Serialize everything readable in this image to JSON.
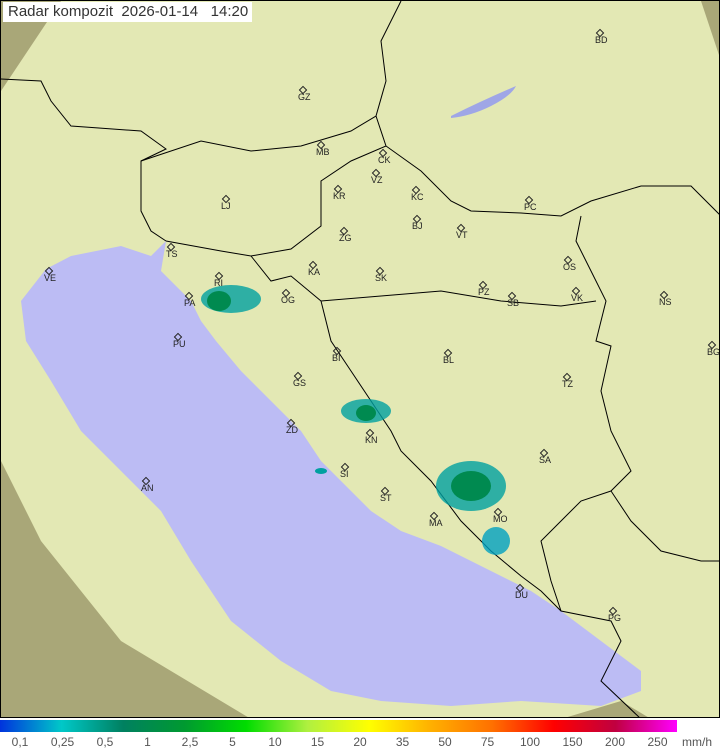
{
  "title": "Radar kompozit",
  "date": "2026-01-14",
  "time": "14:20",
  "colors": {
    "sea": "#bcbcf4",
    "land": "#e3e8b4",
    "outside_radar": "#a9a778",
    "border": "#000000"
  },
  "cities": [
    "GZ",
    "BD",
    "MB",
    "CK",
    "VZ",
    "KR",
    "KC",
    "PC",
    "LJ",
    "TS",
    "ZG",
    "BJ",
    "VT",
    "VE",
    "RI",
    "KA",
    "SK",
    "OS",
    "PA",
    "OG",
    "PZ",
    "SB",
    "VK",
    "NS",
    "PU",
    "BI",
    "BL",
    "BG",
    "GS",
    "TZ",
    "ZD",
    "KN",
    "SA",
    "AN",
    "SI",
    "ST",
    "MO",
    "MA",
    "DU",
    "PG"
  ],
  "legend": {
    "gradient": [
      "#0033dd",
      "#00c8c8",
      "#008060",
      "#009a30",
      "#00dd00",
      "#b0f040",
      "#ffff00",
      "#ffb000",
      "#ff7000",
      "#ff0000",
      "#c00040",
      "#ff00ff"
    ],
    "ticks": [
      "0,1",
      "0,25",
      "0,5",
      "1",
      "2,5",
      "5",
      "10",
      "15",
      "20",
      "35",
      "50",
      "75",
      "100",
      "150",
      "200",
      "250"
    ],
    "unit": "mm/h"
  }
}
